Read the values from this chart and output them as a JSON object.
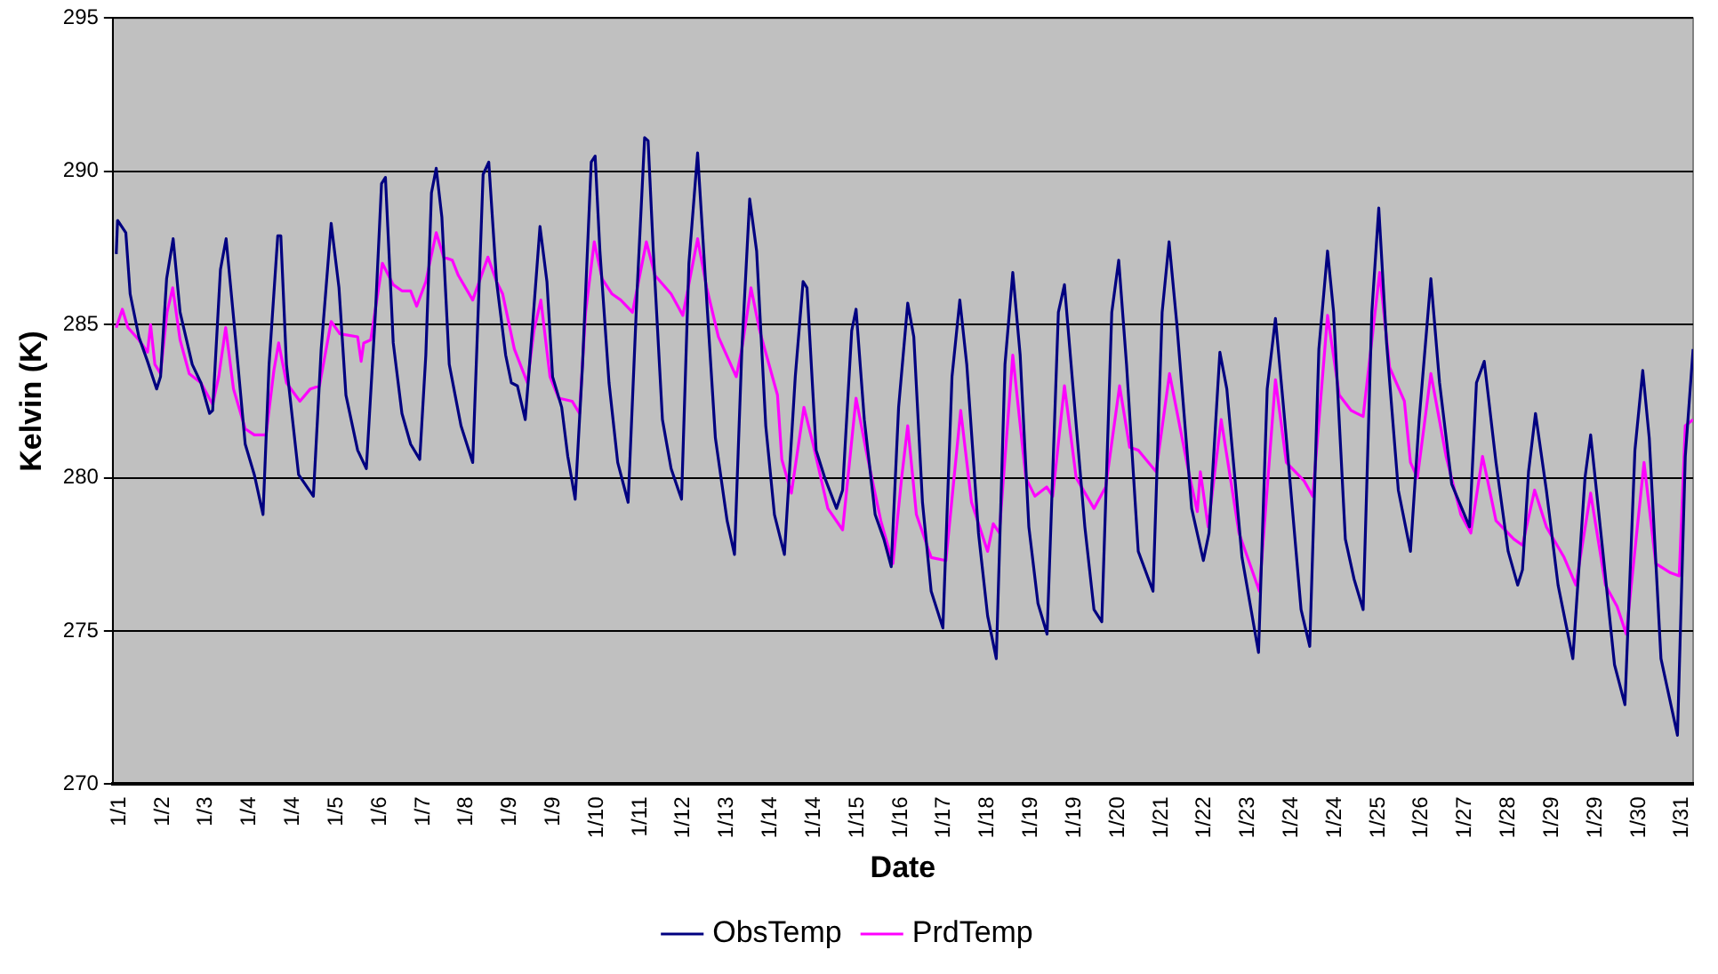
{
  "chart_data": {
    "type": "line",
    "xlabel": "Date",
    "ylabel": "Kelvin (K)",
    "xlim": [
      "--01-01T09:00",
      "--01-31T17:00"
    ],
    "xticks": [
      {
        "value": "--01-01T12:00",
        "label": "1/1"
      },
      {
        "value": "--01-02T08:00",
        "label": "1/2"
      },
      {
        "value": "--01-03T04:00",
        "label": "1/3"
      },
      {
        "value": "--01-04T00:00",
        "label": "1/4"
      },
      {
        "value": "--01-04T20:00",
        "label": "1/4"
      },
      {
        "value": "--01-05T16:00",
        "label": "1/5"
      },
      {
        "value": "--01-06T12:00",
        "label": "1/6"
      },
      {
        "value": "--01-07T08:00",
        "label": "1/7"
      },
      {
        "value": "--01-08T04:00",
        "label": "1/8"
      },
      {
        "value": "--01-09T00:00",
        "label": "1/9"
      },
      {
        "value": "--01-09T20:00",
        "label": "1/9"
      },
      {
        "value": "--01-10T16:00",
        "label": "1/10"
      },
      {
        "value": "--01-11T12:00",
        "label": "1/11"
      },
      {
        "value": "--01-12T08:00",
        "label": "1/12"
      },
      {
        "value": "--01-13T04:00",
        "label": "1/13"
      },
      {
        "value": "--01-14T00:00",
        "label": "1/14"
      },
      {
        "value": "--01-14T20:00",
        "label": "1/14"
      },
      {
        "value": "--01-15T16:00",
        "label": "1/15"
      },
      {
        "value": "--01-16T12:00",
        "label": "1/16"
      },
      {
        "value": "--01-17T08:00",
        "label": "1/17"
      },
      {
        "value": "--01-18T04:00",
        "label": "1/18"
      },
      {
        "value": "--01-19T00:00",
        "label": "1/19"
      },
      {
        "value": "--01-19T20:00",
        "label": "1/19"
      },
      {
        "value": "--01-20T16:00",
        "label": "1/20"
      },
      {
        "value": "--01-21T12:00",
        "label": "1/21"
      },
      {
        "value": "--01-22T08:00",
        "label": "1/22"
      },
      {
        "value": "--01-23T04:00",
        "label": "1/23"
      },
      {
        "value": "--01-24T00:00",
        "label": "1/24"
      },
      {
        "value": "--01-24T20:00",
        "label": "1/24"
      },
      {
        "value": "--01-25T16:00",
        "label": "1/25"
      },
      {
        "value": "--01-26T12:00",
        "label": "1/26"
      },
      {
        "value": "--01-27T08:00",
        "label": "1/27"
      },
      {
        "value": "--01-28T04:00",
        "label": "1/28"
      },
      {
        "value": "--01-29T00:00",
        "label": "1/29"
      },
      {
        "value": "--01-29T20:00",
        "label": "1/29"
      },
      {
        "value": "--01-30T16:00",
        "label": "1/30"
      },
      {
        "value": "--01-31T12:00",
        "label": "1/31"
      }
    ],
    "ylim": [
      270,
      295
    ],
    "yticks": [
      270,
      275,
      280,
      285,
      290,
      295
    ],
    "grid": "y",
    "legend": "bottom",
    "marker": "none",
    "line_style": "solid",
    "series": [
      {
        "name": "ObsTemp",
        "color": "#000080",
        "x": [
          "--01-01T10:36",
          "--01-01T11:12",
          "--01-01T15:00",
          "--01-01T17:00",
          "--01-01T21:00",
          "--01-02T01:00",
          "--01-02T05:12",
          "--01-02T07:00",
          "--01-02T09:48",
          "--01-02T12:48",
          "--01-02T16:00",
          "--01-02T21:36",
          "--01-03T01:36",
          "--01-03T05:36",
          "--01-03T07:00",
          "--01-03T10:36",
          "--01-03T13:12",
          "--01-03T17:12",
          "--01-03T22:00",
          "--01-04T02:12",
          "--01-04T06:12",
          "--01-04T09:00",
          "--01-04T13:00",
          "--01-04T14:24",
          "--01-04T17:00",
          "--01-04T22:36",
          "--01-05T05:24",
          "--01-05T09:00",
          "--01-05T13:36",
          "--01-05T17:12",
          "--01-05T20:24",
          "--01-06T01:48",
          "--01-06T05:48",
          "--01-06T10:00",
          "--01-06T12:48",
          "--01-06T14:36",
          "--01-06T18:12",
          "--01-06T22:12",
          "--01-07T02:12",
          "--01-07T06:24",
          "--01-07T09:12",
          "--01-07T11:48",
          "--01-07T14:00",
          "--01-07T16:36",
          "--01-07T20:00",
          "--01-08T01:24",
          "--01-08T06:48",
          "--01-08T08:48",
          "--01-08T11:36",
          "--01-08T14:12",
          "--01-08T17:48",
          "--01-08T22:00",
          "--01-09T00:36",
          "--01-09T03:24",
          "--01-09T07:00",
          "--01-09T10:12",
          "--01-09T13:48",
          "--01-09T17:00",
          "--01-09T19:36",
          "--01-09T23:48",
          "--01-10T02:36",
          "--01-10T06:00",
          "--01-10T09:24",
          "--01-10T13:24",
          "--01-10T15:12",
          "--01-10T17:24",
          "--01-10T21:36",
          "--01-11T01:36",
          "--01-11T06:24",
          "--01-11T10:36",
          "--01-11T14:00",
          "--01-11T15:36",
          "--01-11T18:00",
          "--01-11T22:12",
          "--01-12T02:12",
          "--01-12T07:00",
          "--01-12T10:24",
          "--01-12T14:24",
          "--01-12T18:36",
          "--01-12T22:36",
          "--01-13T04:00",
          "--01-13T07:24",
          "--01-13T10:48",
          "--01-13T14:24",
          "--01-13T17:36",
          "--01-13T21:48",
          "--01-14T01:48",
          "--01-14T06:24",
          "--01-14T11:24",
          "--01-14T15:00",
          "--01-14T16:48",
          "--01-14T21:00",
          "--01-15T01:00",
          "--01-15T06:24",
          "--01-15T09:12",
          "--01-15T13:24",
          "--01-15T15:24",
          "--01-15T19:12",
          "--01-16T00:12",
          "--01-16T04:12",
          "--01-16T07:36",
          "--01-16T11:00",
          "--01-16T15:12",
          "--01-16T18:00",
          "--01-16T22:00",
          "--01-17T02:00",
          "--01-17T07:24",
          "--01-17T11:36",
          "--01-17T15:12",
          "--01-17T18:24",
          "--01-17T23:48",
          "--01-18T04:00",
          "--01-18T08:00",
          "--01-18T12:00",
          "--01-18T15:36",
          "--01-18T19:00",
          "--01-18T23:00",
          "--01-19T03:12",
          "--01-19T07:24",
          "--01-19T12:36",
          "--01-19T15:24",
          "--01-19T19:24",
          "--01-20T00:48",
          "--01-20T05:00",
          "--01-20T08:36",
          "--01-20T13:12",
          "--01-20T16:24",
          "--01-20T20:00",
          "--01-21T01:24",
          "--01-21T08:12",
          "--01-21T12:24",
          "--01-21T15:36",
          "--01-21T19:12",
          "--01-22T02:00",
          "--01-22T07:24",
          "--01-22T10:00",
          "--01-22T15:00",
          "--01-22T18:12",
          "--01-23T01:12",
          "--01-23T08:48",
          "--01-23T12:48",
          "--01-23T16:36",
          "--01-23T21:36",
          "--01-24T04:24",
          "--01-24T08:24",
          "--01-24T12:36",
          "--01-24T16:36",
          "--01-24T19:24",
          "--01-25T00:48",
          "--01-25T04:48",
          "--01-25T09:00",
          "--01-25T13:00",
          "--01-25T16:12",
          "--01-25T19:48",
          "--01-26T01:12",
          "--01-26T06:48",
          "--01-26T10:48",
          "--01-26T16:12",
          "--01-26T20:12",
          "--01-27T01:48",
          "--01-27T10:00",
          "--01-27T13:12",
          "--01-27T16:48",
          "--01-27T22:12",
          "--01-28T03:48",
          "--01-28T08:12",
          "--01-28T10:24",
          "--01-28T13:12",
          "--01-28T16:24",
          "--01-28T21:24",
          "--01-29T02:48",
          "--01-29T09:36",
          "--01-29T15:12",
          "--01-29T17:48",
          "--01-29T23:24",
          "--01-30T04:48",
          "--01-30T09:36",
          "--01-30T14:12",
          "--01-30T17:48",
          "--01-30T20:48",
          "--01-31T02:12",
          "--01-31T09:48",
          "--01-31T13:24",
          "--01-31T17:00"
        ],
        "values": [
          287.3,
          288.4,
          288.0,
          286.0,
          284.6,
          283.8,
          282.9,
          283.3,
          286.5,
          287.8,
          285.4,
          283.7,
          283.1,
          282.1,
          282.2,
          286.8,
          287.8,
          284.8,
          281.1,
          280.1,
          278.8,
          283.7,
          287.9,
          287.9,
          283.7,
          280.1,
          279.4,
          284.2,
          288.3,
          286.2,
          282.7,
          280.9,
          280.3,
          285.4,
          289.6,
          289.8,
          284.4,
          282.1,
          281.1,
          280.6,
          284.0,
          289.3,
          290.1,
          288.5,
          283.7,
          281.7,
          280.5,
          284.4,
          289.9,
          290.3,
          286.4,
          284.0,
          283.1,
          283.0,
          281.9,
          284.8,
          288.2,
          286.4,
          283.3,
          282.3,
          280.7,
          279.3,
          283.7,
          290.3,
          290.5,
          287.4,
          283.1,
          280.5,
          279.2,
          286.2,
          291.1,
          291.0,
          287.4,
          281.9,
          280.3,
          279.3,
          287.0,
          290.6,
          285.8,
          281.3,
          278.6,
          277.5,
          284.2,
          289.1,
          287.4,
          281.7,
          278.8,
          277.5,
          283.3,
          286.4,
          286.2,
          280.9,
          280.0,
          279.0,
          279.6,
          284.8,
          285.5,
          281.9,
          278.8,
          278.0,
          277.1,
          282.3,
          285.7,
          284.6,
          279.2,
          276.3,
          275.1,
          283.3,
          285.8,
          283.7,
          278.2,
          275.5,
          274.1,
          283.7,
          286.7,
          284.0,
          278.4,
          275.9,
          274.9,
          285.4,
          286.3,
          282.9,
          278.4,
          275.7,
          275.3,
          285.4,
          287.1,
          283.7,
          277.6,
          276.3,
          285.4,
          287.7,
          285.0,
          279.0,
          277.3,
          278.2,
          284.1,
          282.9,
          277.4,
          274.3,
          282.9,
          285.2,
          281.3,
          275.7,
          274.5,
          284.2,
          287.4,
          285.4,
          278.0,
          276.7,
          275.7,
          285.4,
          288.8,
          284.4,
          279.6,
          277.6,
          281.9,
          286.5,
          283.1,
          279.8,
          278.4,
          283.1,
          283.8,
          280.5,
          277.6,
          276.5,
          277.0,
          280.2,
          282.1,
          279.6,
          276.5,
          274.1,
          280.0,
          281.4,
          277.6,
          273.9,
          272.6,
          280.9,
          283.5,
          281.3,
          274.1,
          271.6,
          280.7,
          284.2
        ]
      },
      {
        "name": "PrdTemp",
        "color": "#ff00ff",
        "x": [
          "--01-01T10:36",
          "--01-01T13:24",
          "--01-01T16:00",
          "--01-01T21:00",
          "--01-02T01:00",
          "--01-02T02:24",
          "--01-02T04:24",
          "--01-02T07:00",
          "--01-02T10:00",
          "--01-02T12:36",
          "--01-02T16:00",
          "--01-02T20:12",
          "--01-03T01:36",
          "--01-03T07:00",
          "--01-03T09:48",
          "--01-03T13:00",
          "--01-03T16:36",
          "--01-03T22:00",
          "--01-04T02:12",
          "--01-04T07:36",
          "--01-04T11:12",
          "--01-04T13:24",
          "--01-04T17:00",
          "--01-04T23:12",
          "--01-05T04:00",
          "--01-05T08:12",
          "--01-05T13:36",
          "--01-05T17:36",
          "--01-06T01:48",
          "--01-06T03:24",
          "--01-06T04:36",
          "--01-06T07:48",
          "--01-06T13:12",
          "--01-06T18:12",
          "--01-06T22:12",
          "--01-07T02:12",
          "--01-07T05:00",
          "--01-07T09:12",
          "--01-07T14:00",
          "--01-07T17:24",
          "--01-07T21:24",
          "--01-08T00:12",
          "--01-08T06:48",
          "--01-08T13:48",
          "--01-08T17:48",
          "--01-08T20:36",
          "--01-09T02:00",
          "--01-09T08:00",
          "--01-09T11:00",
          "--01-09T14:12",
          "--01-09T18:24",
          "--01-09T22:24",
          "--01-10T04:36",
          "--01-10T08:00",
          "--01-10T10:48",
          "--01-10T14:48",
          "--01-10T18:24",
          "--01-10T23:00",
          "--01-11T03:00",
          "--01-11T08:24",
          "--01-11T14:48",
          "--01-11T18:48",
          "--01-12T02:12",
          "--01-12T07:36",
          "--01-12T14:24",
          "--01-12T18:36",
          "--01-13T00:00",
          "--01-13T08:12",
          "--01-13T10:48",
          "--01-13T15:00",
          "--01-13T19:00",
          "--01-14T03:12",
          "--01-14T05:12",
          "--01-14T09:36",
          "--01-14T15:24",
          "--01-14T19:36",
          "--01-15T02:24",
          "--01-15T09:12",
          "--01-15T15:24",
          "--01-15T20:00",
          "--01-16T02:48",
          "--01-16T08:24",
          "--01-16T12:24",
          "--01-16T15:12",
          "--01-16T19:12",
          "--01-17T02:00",
          "--01-17T08:48",
          "--01-17T15:36",
          "--01-17T20:36",
          "--01-18T04:00",
          "--01-18T06:36",
          "--01-18T09:24",
          "--01-18T15:36",
          "--01-18T21:36",
          "--01-19T01:48",
          "--01-19T07:12",
          "--01-19T10:00",
          "--01-19T15:24",
          "--01-19T20:48",
          "--01-20T05:00",
          "--01-20T10:24",
          "--01-20T16:48",
          "--01-20T21:24",
          "--01-21T01:24",
          "--01-21T09:36",
          "--01-21T15:48",
          "--01-22T00:36",
          "--01-22T04:36",
          "--01-22T06:00",
          "--01-22T09:36",
          "--01-22T15:36",
          "--01-22T23:48",
          "--01-23T09:12",
          "--01-23T16:36",
          "--01-23T21:36",
          "--01-24T05:48",
          "--01-24T09:48",
          "--01-24T16:36",
          "--01-24T22:00",
          "--01-25T03:24",
          "--01-25T09:00",
          "--01-25T16:36",
          "--01-25T21:12",
          "--01-26T04:00",
          "--01-26T06:48",
          "--01-26T10:00",
          "--01-26T16:12",
          "--01-26T23:12",
          "--01-27T06:00",
          "--01-27T10:36",
          "--01-27T16:00",
          "--01-27T22:12",
          "--01-28T06:24",
          "--01-28T10:24",
          "--01-28T16:00",
          "--01-28T21:24",
          "--01-29T05:36",
          "--01-29T11:00",
          "--01-29T17:48",
          "--01-30T00:36",
          "--01-30T06:00",
          "--01-30T10:12",
          "--01-30T18:24",
          "--01-30T23:48",
          "--01-31T06:36",
          "--01-31T10:36",
          "--01-31T13:24",
          "--01-31T17:00"
        ],
        "values": [
          284.9,
          285.5,
          284.9,
          284.5,
          284.1,
          285.0,
          283.7,
          283.4,
          285.4,
          286.2,
          284.5,
          283.4,
          283.1,
          282.4,
          283.3,
          284.9,
          282.9,
          281.6,
          281.4,
          281.4,
          283.5,
          284.4,
          283.1,
          282.5,
          282.9,
          283.0,
          285.1,
          284.7,
          284.6,
          283.8,
          284.4,
          284.5,
          287.0,
          286.3,
          286.1,
          286.1,
          285.6,
          286.4,
          288.0,
          287.2,
          287.1,
          286.6,
          285.8,
          287.2,
          286.4,
          286.0,
          284.2,
          283.1,
          284.8,
          285.8,
          283.3,
          282.6,
          282.5,
          282.1,
          285.4,
          287.7,
          286.5,
          286.0,
          285.8,
          285.4,
          287.7,
          286.6,
          286.0,
          285.3,
          287.8,
          286.2,
          284.6,
          283.3,
          284.2,
          286.2,
          284.8,
          282.7,
          280.6,
          279.5,
          282.3,
          281.1,
          279.0,
          278.3,
          282.6,
          280.9,
          278.6,
          277.2,
          280.0,
          281.7,
          278.8,
          277.4,
          277.3,
          282.2,
          279.2,
          277.6,
          278.5,
          278.2,
          284.0,
          280.0,
          279.4,
          279.7,
          279.4,
          283.0,
          280.0,
          279.0,
          279.7,
          283.0,
          281.0,
          280.9,
          280.2,
          283.4,
          280.2,
          278.9,
          280.2,
          278.4,
          281.9,
          278.2,
          276.3,
          283.2,
          280.5,
          279.9,
          279.4,
          285.3,
          282.7,
          282.2,
          282.0,
          286.7,
          283.6,
          282.5,
          280.5,
          280.0,
          283.4,
          280.7,
          278.8,
          278.2,
          280.7,
          278.6,
          278.0,
          277.8,
          279.6,
          278.4,
          277.4,
          276.5,
          279.5,
          276.5,
          275.8,
          274.9,
          280.5,
          277.2,
          276.9,
          276.8,
          281.7,
          281.9
        ]
      }
    ]
  }
}
